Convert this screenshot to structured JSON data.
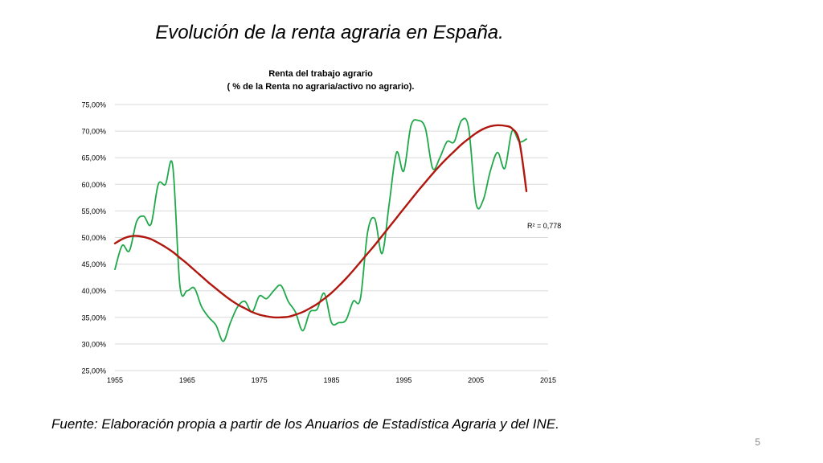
{
  "slide": {
    "title": "Evolución de la renta agraria en España.",
    "footer": "Fuente: Elaboración propia a partir de los Anuarios de Estadística Agraria y del INE.",
    "page_number": "5"
  },
  "chart_data": {
    "type": "line",
    "title": "Renta del trabajo agrario",
    "subtitle": "( % de la Renta no agraria/activo no agrario).",
    "xlim": [
      1955,
      2015
    ],
    "x_ticks": [
      "1955",
      "1965",
      "1975",
      "1985",
      "1995",
      "2005",
      "2015"
    ],
    "ylim": [
      25,
      75
    ],
    "y_ticks": [
      "25,00%",
      "30,00%",
      "35,00%",
      "40,00%",
      "45,00%",
      "50,00%",
      "55,00%",
      "60,00%",
      "65,00%",
      "70,00%",
      "75,00%"
    ],
    "grid": true,
    "annotation": "R² = 0,778",
    "colors": {
      "data": "#1fa84a",
      "trend": "#b0180f",
      "grid": "#d9d9d9"
    },
    "series": [
      {
        "x": [
          1955,
          1956,
          1957,
          1958,
          1959,
          1960,
          1961,
          1962,
          1963,
          1964,
          1965,
          1966,
          1967,
          1968,
          1969,
          1970,
          1971,
          1972,
          1973,
          1974,
          1975,
          1976,
          1977,
          1978,
          1979,
          1980,
          1981,
          1982,
          1983,
          1984,
          1985,
          1986,
          1987,
          1988,
          1989,
          1990,
          1991,
          1992,
          1993,
          1994,
          1995,
          1996,
          1997,
          1998,
          1999,
          2000,
          2001,
          2002,
          2003,
          2004,
          2005,
          2006,
          2007,
          2008,
          2009,
          2010,
          2011,
          2012
        ],
        "values": [
          44,
          48.5,
          47.5,
          53,
          54,
          52.5,
          60,
          60,
          63.5,
          41,
          40,
          40.5,
          37,
          35,
          33.5,
          30.5,
          34,
          37,
          38,
          36,
          39,
          38.5,
          40,
          41,
          38,
          36,
          32.5,
          36,
          36.5,
          39.5,
          34,
          34,
          34.5,
          38,
          38.5,
          51,
          53.5,
          47,
          56.5,
          66,
          62.5,
          71,
          72,
          70.5,
          63,
          65,
          68,
          68,
          72,
          70.5,
          56.5,
          57,
          62.5,
          66,
          63,
          70,
          68,
          68.5
        ]
      },
      {
        "x": [
          1955,
          1956,
          1957,
          1958,
          1959,
          1960,
          1961,
          1962,
          1963,
          1964,
          1965,
          1966,
          1967,
          1968,
          1969,
          1970,
          1971,
          1972,
          1973,
          1974,
          1975,
          1976,
          1977,
          1978,
          1979,
          1980,
          1981,
          1982,
          1983,
          1984,
          1985,
          1986,
          1987,
          1988,
          1989,
          1990,
          1991,
          1992,
          1993,
          1994,
          1995,
          1996,
          1997,
          1998,
          1999,
          2000,
          2001,
          2002,
          2003,
          2004,
          2005,
          2006,
          2007,
          2008,
          2009,
          2010,
          2011,
          2012
        ],
        "values": [
          48.9,
          49.7,
          50.2,
          50.3,
          50.1,
          49.7,
          49.0,
          48.2,
          47.3,
          46.2,
          45.1,
          43.9,
          42.7,
          41.5,
          40.4,
          39.3,
          38.3,
          37.4,
          36.7,
          36.0,
          35.5,
          35.2,
          35.0,
          35.0,
          35.1,
          35.5,
          36.0,
          36.7,
          37.5,
          38.5,
          39.6,
          40.9,
          42.3,
          43.8,
          45.4,
          47.0,
          48.6,
          50.3,
          52.0,
          53.7,
          55.4,
          57.1,
          58.8,
          60.4,
          62.0,
          63.5,
          64.9,
          66.2,
          67.5,
          68.6,
          69.6,
          70.4,
          70.9,
          71.1,
          71.0,
          70.5,
          68.1,
          58.7
        ]
      }
    ]
  }
}
